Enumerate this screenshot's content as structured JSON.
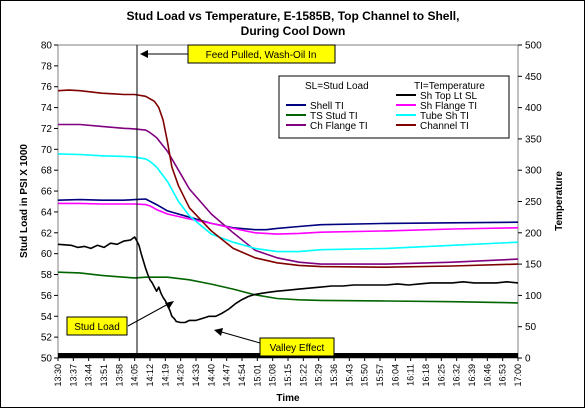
{
  "chart_data": {
    "type": "line",
    "title_line1": "Stud Load vs Temperature, E-1585B, Top Channel to Shell,",
    "title_line2": "During Cool Down",
    "xlabel": "Time",
    "ylabel_left": "Stud Load in PSI X 1000",
    "ylabel_right": "Temperature",
    "ylim_left": [
      50,
      80
    ],
    "ylim_right": [
      0,
      500
    ],
    "yticks_left": [
      50,
      52,
      54,
      56,
      58,
      60,
      62,
      64,
      66,
      68,
      70,
      72,
      74,
      76,
      78,
      80
    ],
    "yticks_right": [
      0,
      50,
      100,
      150,
      200,
      250,
      300,
      350,
      400,
      450,
      500
    ],
    "x_ticks": [
      "13:30",
      "13:37",
      "13:44",
      "13:51",
      "13:58",
      "14:05",
      "14:12",
      "14:19",
      "14:26",
      "14:33",
      "14:40",
      "14:47",
      "14:54",
      "15:01",
      "15:08",
      "15:15",
      "15:22",
      "15:29",
      "15:36",
      "15:43",
      "15:50",
      "15:57",
      "16:04",
      "16:11",
      "16:18",
      "16:25",
      "16:32",
      "16:39",
      "16:46",
      "16:53",
      "17:00"
    ],
    "x_unit": "minutes after 13:30",
    "legend_header_left": "SL=Stud Load",
    "legend_header_right": "TI=Temperature",
    "legend_placement": "top-right",
    "annotations": {
      "feed": "Feed Pulled, Wash-Oil In",
      "stud": "Stud Load",
      "valley": "Valley Effect"
    },
    "series": [
      {
        "name": "Shell TI",
        "axis": "right",
        "color": "#000080",
        "x": [
          0,
          10,
          20,
          30,
          35,
          40,
          45,
          50,
          60,
          70,
          80,
          90,
          95,
          100,
          110,
          120,
          150,
          180,
          210
        ],
        "y": [
          252,
          253,
          252,
          252,
          253,
          254,
          245,
          235,
          225,
          215,
          208,
          205,
          205,
          207,
          210,
          213,
          215,
          216,
          217
        ]
      },
      {
        "name": "TS Stud TI",
        "axis": "right",
        "color": "#006400",
        "x": [
          0,
          10,
          20,
          30,
          35,
          40,
          50,
          60,
          70,
          80,
          90,
          100,
          110,
          120,
          150,
          180,
          210
        ],
        "y": [
          137,
          136,
          132,
          129,
          128,
          129,
          129,
          125,
          118,
          110,
          101,
          95,
          93,
          92,
          91,
          90,
          88
        ]
      },
      {
        "name": "Ch Flange TI",
        "axis": "right",
        "color": "#800080",
        "x": [
          0,
          10,
          20,
          30,
          35,
          40,
          42,
          45,
          50,
          55,
          60,
          70,
          80,
          90,
          100,
          110,
          120,
          150,
          180,
          210
        ],
        "y": [
          373,
          373,
          370,
          367,
          366,
          364,
          360,
          352,
          330,
          300,
          270,
          230,
          200,
          172,
          160,
          153,
          150,
          150,
          153,
          158
        ]
      },
      {
        "name": "Sh Top Lt SL",
        "axis": "left",
        "color": "#000000",
        "x": [
          0,
          3,
          6,
          9,
          12,
          15,
          18,
          21,
          24,
          27,
          30,
          33,
          35,
          36,
          37,
          38,
          39,
          40,
          41,
          42,
          43,
          44,
          45,
          46,
          47,
          48,
          49,
          50,
          51,
          52,
          53,
          54,
          56,
          58,
          60,
          63,
          66,
          69,
          72,
          75,
          78,
          81,
          84,
          87,
          90,
          93,
          96,
          100,
          105,
          110,
          115,
          120,
          125,
          130,
          135,
          140,
          145,
          150,
          155,
          160,
          165,
          170,
          175,
          180,
          185,
          190,
          195,
          200,
          205,
          210
        ],
        "y": [
          60.9,
          60.85,
          60.8,
          60.6,
          60.7,
          60.5,
          60.8,
          60.6,
          61.0,
          60.9,
          61.2,
          61.3,
          61.6,
          61.2,
          60.8,
          60.0,
          59.3,
          58.6,
          58.0,
          57.5,
          57.2,
          56.8,
          56.4,
          56.8,
          56.2,
          55.8,
          55.5,
          55.0,
          54.6,
          54.0,
          53.8,
          53.5,
          53.4,
          53.4,
          53.6,
          53.6,
          53.8,
          54.0,
          54.0,
          54.3,
          54.7,
          55.2,
          55.6,
          55.9,
          56.1,
          56.2,
          56.3,
          56.4,
          56.5,
          56.6,
          56.7,
          56.8,
          56.9,
          56.9,
          57.0,
          57.0,
          57.0,
          57.0,
          57.1,
          57.0,
          57.1,
          57.2,
          57.2,
          57.2,
          57.3,
          57.2,
          57.2,
          57.2,
          57.3,
          57.2
        ]
      },
      {
        "name": "Sh Flange TI",
        "axis": "right",
        "color": "#ff00ff",
        "x": [
          0,
          10,
          20,
          30,
          35,
          40,
          42,
          45,
          50,
          60,
          70,
          80,
          90,
          100,
          110,
          120,
          150,
          180,
          210
        ],
        "y": [
          247,
          247,
          246,
          246,
          246,
          245,
          243,
          237,
          230,
          222,
          215,
          207,
          200,
          198,
          199,
          201,
          203,
          206,
          208
        ]
      },
      {
        "name": "Tube Sh TI",
        "axis": "right",
        "color": "#00ffff",
        "x": [
          0,
          10,
          20,
          30,
          35,
          40,
          42,
          45,
          50,
          55,
          60,
          70,
          80,
          90,
          100,
          110,
          120,
          150,
          180,
          210
        ],
        "y": [
          326,
          325,
          323,
          322,
          321,
          318,
          314,
          305,
          282,
          250,
          227,
          198,
          185,
          175,
          170,
          170,
          173,
          175,
          180,
          185
        ]
      },
      {
        "name": "Channel TI",
        "axis": "right",
        "color": "#800000",
        "x": [
          0,
          5,
          10,
          15,
          20,
          25,
          30,
          35,
          40,
          42,
          44,
          46,
          48,
          50,
          52,
          55,
          60,
          70,
          80,
          90,
          100,
          110,
          120,
          150,
          180,
          210
        ],
        "y": [
          427,
          428,
          427,
          425,
          423,
          422,
          421,
          421,
          418,
          414,
          410,
          400,
          380,
          345,
          305,
          275,
          240,
          203,
          175,
          160,
          152,
          148,
          146,
          145,
          147,
          150
        ]
      }
    ]
  }
}
